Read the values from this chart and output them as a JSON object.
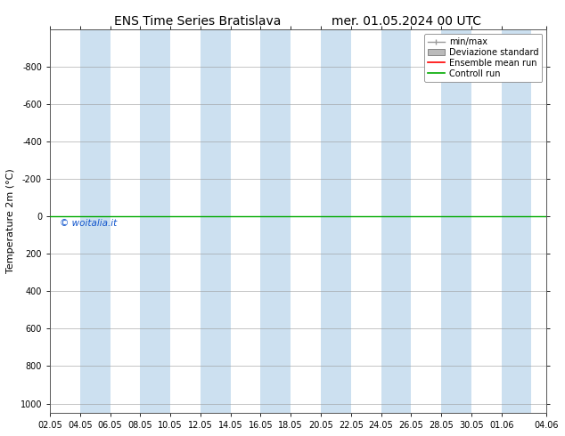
{
  "title_left": "ENS Time Series Bratislava",
  "title_right": "mer. 01.05.2024 00 UTC",
  "ylabel": "Temperature 2m (°C)",
  "ylim": [
    -1000,
    1050
  ],
  "yticks": [
    -800,
    -600,
    -400,
    -200,
    0,
    200,
    400,
    600,
    800,
    1000
  ],
  "xlim": [
    0,
    33
  ],
  "xtick_labels": [
    "02.05",
    "04.05",
    "06.05",
    "08.05",
    "10.05",
    "12.05",
    "14.05",
    "16.05",
    "18.05",
    "20.05",
    "22.05",
    "24.05",
    "26.05",
    "28.05",
    "30.05",
    "01.06",
    "04.06"
  ],
  "xtick_positions": [
    0,
    2,
    4,
    6,
    8,
    10,
    12,
    14,
    16,
    18,
    20,
    22,
    24,
    26,
    28,
    30,
    33
  ],
  "shaded_bands": [
    [
      2,
      4
    ],
    [
      6,
      8
    ],
    [
      10,
      12
    ],
    [
      14,
      16
    ],
    [
      18,
      20
    ],
    [
      22,
      24
    ],
    [
      26,
      28
    ],
    [
      30,
      32
    ]
  ],
  "shaded_band_color": "#cce0f0",
  "control_run_y": 0,
  "control_run_color": "#00aa00",
  "ensemble_mean_color": "#ff0000",
  "watermark_text": "© woitalia.it",
  "watermark_color": "#1155cc",
  "background_color": "#ffffff",
  "legend_entries": [
    "min/max",
    "Deviazione standard",
    "Ensemble mean run",
    "Controll run"
  ],
  "legend_colors": [
    "#999999",
    "#bbbbbb",
    "#ff0000",
    "#00aa00"
  ],
  "title_fontsize": 10,
  "tick_fontsize": 7,
  "ylabel_fontsize": 8,
  "legend_fontsize": 7,
  "figsize": [
    6.34,
    4.9
  ],
  "dpi": 100
}
